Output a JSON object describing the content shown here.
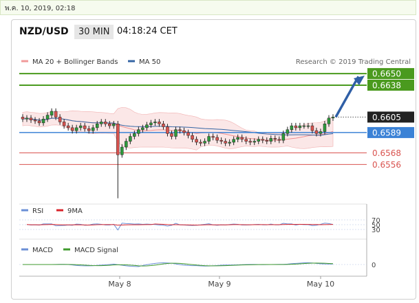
{
  "date_stamp": "พ.ค. 10, 2019, 02:18",
  "header": {
    "pair": "NZD/USD",
    "timeframe": "30 MIN",
    "time": "04:18:24 CET"
  },
  "legend": {
    "ma20": "MA 20 + Bollinger Bands",
    "ma50": "MA 50",
    "credit": "Research © 2019 Trading Central"
  },
  "colors": {
    "up": "#2f9a3c",
    "down": "#d9534f",
    "ma50": "#3465a4",
    "band": "#f7c9c9",
    "resistance": "#4a9a1e",
    "support": "#d9534f",
    "pivot": "#3b82d6",
    "current": "#222222"
  },
  "chart_data": [
    {
      "type": "candlestick",
      "title": "NZD/USD",
      "x_ticks": [
        "May 8",
        "May 9",
        "May 10"
      ],
      "levels": [
        {
          "value": 0.665,
          "label": "0.6650",
          "kind": "resistance"
        },
        {
          "value": 0.6638,
          "label": "0.6638",
          "kind": "resistance"
        },
        {
          "value": 0.6605,
          "label": "0.6605",
          "kind": "current"
        },
        {
          "value": 0.6589,
          "label": "0.6589",
          "kind": "pivot"
        },
        {
          "value": 0.6568,
          "label": "0.6568",
          "kind": "support"
        },
        {
          "value": 0.6556,
          "label": "0.6556",
          "kind": "support"
        }
      ],
      "ylim": [
        0.652,
        0.6665
      ],
      "price_series": [
        0.6603,
        0.6604,
        0.6602,
        0.6601,
        0.6599,
        0.6603,
        0.6607,
        0.6611,
        0.6605,
        0.66,
        0.6596,
        0.6594,
        0.6591,
        0.6594,
        0.6596,
        0.6593,
        0.6591,
        0.6594,
        0.6598,
        0.66,
        0.6598,
        0.6596,
        0.6598,
        0.6566,
        0.6574,
        0.658,
        0.6585,
        0.6588,
        0.6592,
        0.6594,
        0.6597,
        0.6599,
        0.66,
        0.6598,
        0.6595,
        0.6588,
        0.6585,
        0.6592,
        0.6591,
        0.6589,
        0.6586,
        0.6582,
        0.6579,
        0.6578,
        0.658,
        0.6585,
        0.6584,
        0.6581,
        0.658,
        0.6578,
        0.6579,
        0.6582,
        0.6584,
        0.6582,
        0.658,
        0.6579,
        0.658,
        0.6582,
        0.6581,
        0.658,
        0.6583,
        0.6582,
        0.6581,
        0.6588,
        0.6592,
        0.6596,
        0.6594,
        0.6596,
        0.6596,
        0.6596,
        0.6591,
        0.6588,
        0.659,
        0.6598,
        0.6604,
        0.6605
      ]
    },
    {
      "type": "line",
      "title": "RSI",
      "series": [
        {
          "name": "RSI"
        },
        {
          "name": "9MA"
        }
      ],
      "y_ticks": [
        70,
        50,
        30
      ]
    },
    {
      "type": "line",
      "title": "MACD",
      "series": [
        {
          "name": "MACD"
        },
        {
          "name": "MACD Signal"
        }
      ],
      "y_ticks": [
        0
      ]
    }
  ]
}
